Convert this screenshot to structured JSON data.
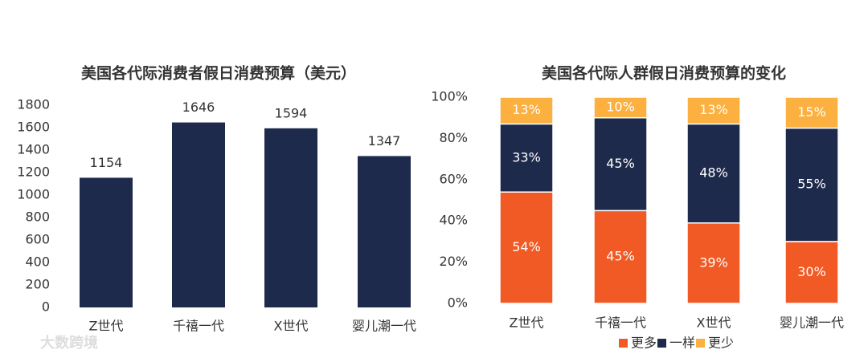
{
  "chart_data": [
    {
      "type": "bar",
      "title": "美国各代际消费者假日消费预算（美元）",
      "categories": [
        "Z世代",
        "千禧一代",
        "X世代",
        "婴儿潮一代"
      ],
      "values": [
        1154,
        1646,
        1594,
        1347
      ],
      "color": "#1e2a4b",
      "ylim": [
        0,
        1800
      ],
      "yticks": [
        0,
        200,
        400,
        600,
        800,
        1000,
        1200,
        1400,
        1600,
        1800
      ],
      "grid": false
    },
    {
      "type": "stacked_bar",
      "title": "美国各代际人群假日消费预算的变化",
      "categories": [
        "Z世代",
        "千禧一代",
        "X世代",
        "婴儿潮一代"
      ],
      "series": [
        {
          "name": "更多",
          "color": "#f15a24",
          "values": [
            54,
            45,
            39,
            30
          ],
          "value_labels": [
            "54%",
            "45%",
            "39%",
            "30%"
          ]
        },
        {
          "name": "一样",
          "color": "#1e2a4b",
          "values": [
            33,
            45,
            48,
            55
          ],
          "value_labels": [
            "33%",
            "45%",
            "48%",
            "55%"
          ]
        },
        {
          "name": "更少",
          "color": "#fbb040",
          "values": [
            13,
            10,
            13,
            15
          ],
          "value_labels": [
            "13%",
            "10%",
            "13%",
            "15%"
          ]
        }
      ],
      "ylim": [
        0,
        100
      ],
      "yticks": [
        {
          "value": 0,
          "label": "0%"
        },
        {
          "value": 20,
          "label": "20%"
        },
        {
          "value": 40,
          "label": "40%"
        },
        {
          "value": 60,
          "label": "60%"
        },
        {
          "value": 80,
          "label": "80%"
        },
        {
          "value": 100,
          "label": "100%"
        }
      ],
      "grid": false,
      "legend": "bottom"
    }
  ],
  "watermark": "大数跨境"
}
